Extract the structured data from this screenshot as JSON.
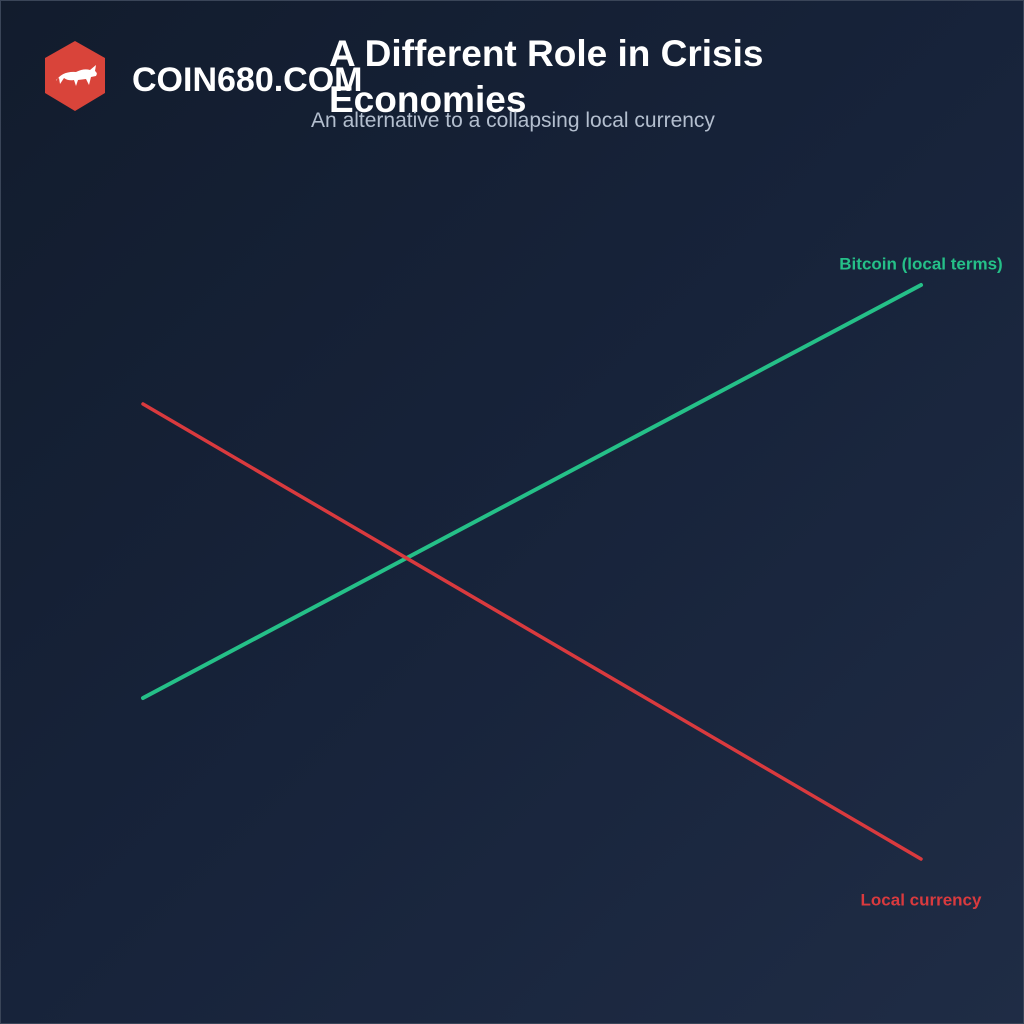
{
  "brand": "COIN680.COM",
  "chart_data": {
    "type": "line",
    "title": "A Different Role in Crisis Economies",
    "subtitle": "An alternative to a collapsing local currency",
    "categories": [
      null,
      null
    ],
    "ylim": [
      0,
      100
    ],
    "series": [
      {
        "name": "Bitcoin (local terms)",
        "color": "#25c088",
        "values": [
          29,
          88
        ]
      },
      {
        "name": "Local currency",
        "color": "#d93a3e",
        "values": [
          71,
          6
        ]
      }
    ]
  }
}
